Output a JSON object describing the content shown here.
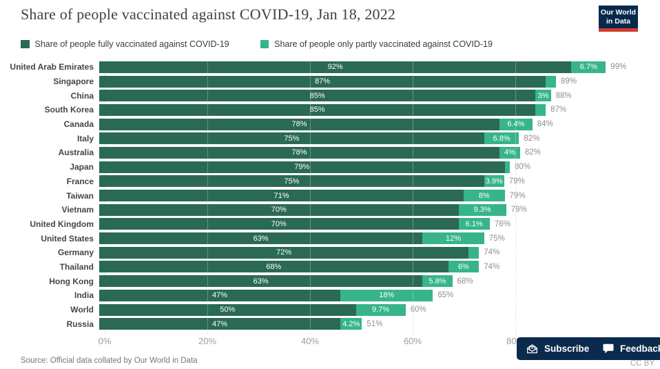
{
  "header": {
    "title": "Share of people vaccinated against COVID-19, Jan 18, 2022",
    "logo_line1": "Our World",
    "logo_line2": "in Data"
  },
  "legend": [
    {
      "label": "Share of people fully vaccinated against COVID-19",
      "color": "#2a6a53"
    },
    {
      "label": "Share of people only partly vaccinated against COVID-19",
      "color": "#37b588"
    }
  ],
  "chart_data": {
    "type": "bar",
    "orientation": "horizontal",
    "stacked": true,
    "title": "Share of people vaccinated against COVID-19, Jan 18, 2022",
    "categories": [
      "United Arab Emirates",
      "Singapore",
      "China",
      "South Korea",
      "Canada",
      "Italy",
      "Australia",
      "Japan",
      "France",
      "Taiwan",
      "Vietnam",
      "United Kingdom",
      "United States",
      "Germany",
      "Thailand",
      "Hong Kong",
      "India",
      "World",
      "Russia"
    ],
    "series": [
      {
        "name": "Share of people fully vaccinated against COVID-19",
        "color": "#2a6a53",
        "values": [
          92,
          87,
          85,
          85,
          78,
          75,
          78,
          79,
          75,
          71,
          70,
          70,
          63,
          72,
          68,
          63,
          47,
          50,
          47
        ],
        "labels": [
          "92%",
          "87%",
          "85%",
          "85%",
          "78%",
          "75%",
          "78%",
          "79%",
          "75%",
          "71%",
          "70%",
          "70%",
          "63%",
          "72%",
          "68%",
          "63%",
          "47%",
          "50%",
          "47%"
        ]
      },
      {
        "name": "Share of people only partly vaccinated against COVID-19",
        "color": "#37b588",
        "values": [
          6.7,
          2,
          3,
          2,
          6.4,
          6.8,
          4,
          1,
          3.9,
          8,
          9.3,
          6.1,
          12,
          2,
          6,
          5.8,
          18,
          9.7,
          4.2
        ],
        "labels": [
          "6.7%",
          "",
          "3%",
          "",
          "6.4%",
          "6.8%",
          "4%",
          "",
          "3.9%",
          "8%",
          "9.3%",
          "6.1%",
          "12%",
          "",
          "6%",
          "5.8%",
          "18%",
          "9.7%",
          "4.2%"
        ]
      }
    ],
    "totals": [
      "99%",
      "89%",
      "88%",
      "87%",
      "84%",
      "82%",
      "82%",
      "80%",
      "79%",
      "79%",
      "79%",
      "76%",
      "75%",
      "74%",
      "74%",
      "68%",
      "65%",
      "60%",
      "51%"
    ],
    "xlim": [
      0,
      100
    ],
    "x_ticks": [
      {
        "label": "0%",
        "pct": 0
      },
      {
        "label": "20%",
        "pct": 20
      },
      {
        "label": "40%",
        "pct": 40
      },
      {
        "label": "60%",
        "pct": 60
      },
      {
        "label": "80%",
        "pct": 80
      }
    ],
    "gridlines_pct": [
      0,
      20,
      40,
      60,
      80
    ],
    "legend_position": "top",
    "grid": "dashed-vertical"
  },
  "footer": {
    "source": "Source: Official data collated by Our World in Data",
    "license": "CC BY"
  },
  "buttons": {
    "subscribe_label": "Subscribe",
    "feedback_label": "Feedback"
  }
}
